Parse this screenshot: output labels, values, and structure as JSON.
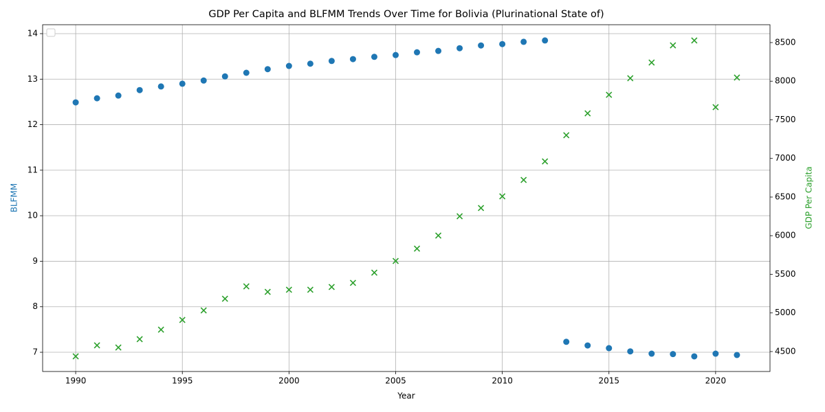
{
  "chart_data": {
    "type": "scatter",
    "title": "GDP Per Capita and BLFMM Trends Over Time for Bolivia (Plurinational State of)",
    "x_label": "Year",
    "y_label": "BLFMM",
    "y2_label": "GDP Per Capita",
    "x": [
      1990,
      1991,
      1992,
      1993,
      1994,
      1995,
      1996,
      1997,
      1998,
      1999,
      2000,
      2001,
      2002,
      2003,
      2004,
      2005,
      2006,
      2007,
      2008,
      2009,
      2010,
      2011,
      2012,
      2013,
      2014,
      2015,
      2016,
      2017,
      2018,
      2019,
      2020,
      2021
    ],
    "xlim": [
      1988.45,
      2022.55
    ],
    "xticks": [
      1990,
      1995,
      2000,
      2005,
      2010,
      2015,
      2020
    ],
    "ylim": [
      6.578,
      14.196
    ],
    "yticks": [
      7,
      8,
      9,
      10,
      11,
      12,
      13,
      14
    ],
    "y2lim": [
      4242,
      8731
    ],
    "y2ticks": [
      4500,
      5000,
      5500,
      6000,
      6500,
      7000,
      7500,
      8000,
      8500
    ],
    "grid": true,
    "series": [
      {
        "color": "#1f77b4",
        "marker": "circle",
        "values": [
          12.49,
          12.58,
          12.64,
          12.76,
          12.84,
          12.9,
          12.97,
          13.06,
          13.14,
          13.22,
          13.29,
          13.34,
          13.4,
          13.44,
          13.49,
          13.53,
          13.59,
          13.62,
          13.68,
          13.74,
          13.77,
          13.82,
          13.85,
          7.23,
          7.15,
          7.09,
          7.02,
          6.97,
          6.96,
          6.91,
          6.97,
          6.94
        ]
      },
      {
        "color": "#2ca02c",
        "marker": "x",
        "axis": "y2",
        "values": [
          4438,
          4580,
          4553,
          4660,
          4784,
          4909,
          5033,
          5184,
          5344,
          5273,
          5300,
          5300,
          5336,
          5389,
          5522,
          5673,
          5833,
          6002,
          6251,
          6358,
          6509,
          6722,
          6962,
          7300,
          7584,
          7824,
          8038,
          8242,
          8464,
          8527,
          7664,
          8047
        ]
      }
    ]
  }
}
